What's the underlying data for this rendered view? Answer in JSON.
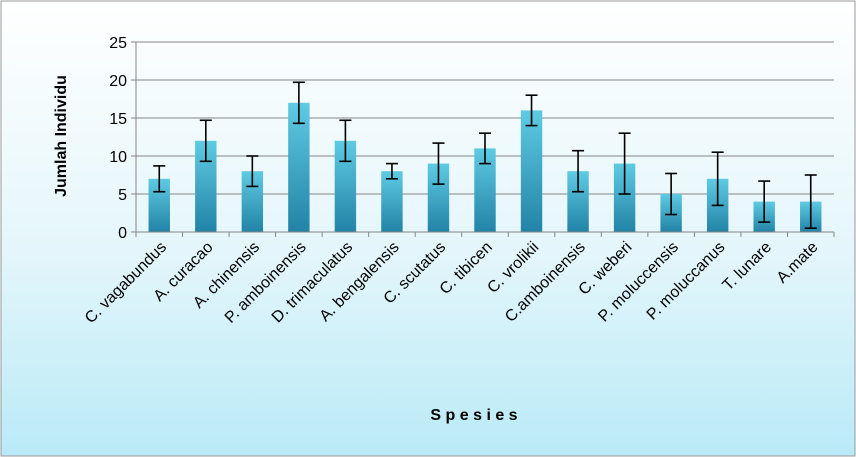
{
  "chart_data": {
    "type": "bar",
    "xlabel": "S p e s i e s",
    "ylabel": "Jumlah Individu",
    "ylim": [
      0,
      25
    ],
    "yticks": [
      0,
      5,
      10,
      15,
      20,
      25
    ],
    "grid": true,
    "legend": "none",
    "categories": [
      "C. vagabundus",
      "A. curacao",
      "A. chinensis",
      "P. amboinensis",
      "D. trimaculatus",
      "A. bengalensis",
      "C. scutatus",
      "C. tibicen",
      "C. vrolikii",
      "C.amboinensis",
      "C. weberi",
      "P. moluccensis",
      "P. moluccanus",
      "T. lunare",
      "A.mate"
    ],
    "values": [
      7,
      12,
      8,
      17,
      12,
      8,
      9,
      11,
      16,
      8,
      9,
      5,
      7,
      4,
      4
    ],
    "error": [
      1.7,
      2.7,
      2.0,
      2.7,
      2.7,
      1.0,
      2.7,
      2.0,
      2.0,
      2.7,
      4.0,
      2.7,
      3.5,
      2.7,
      3.5
    ]
  },
  "colors": {
    "background_top": "#ffffff",
    "background_bottom": "#b9eaf7",
    "bar_light": "#5fcbe3",
    "bar_dark": "#2283a6",
    "axis": "#868686",
    "grid": "#868686",
    "text": "#000000"
  }
}
